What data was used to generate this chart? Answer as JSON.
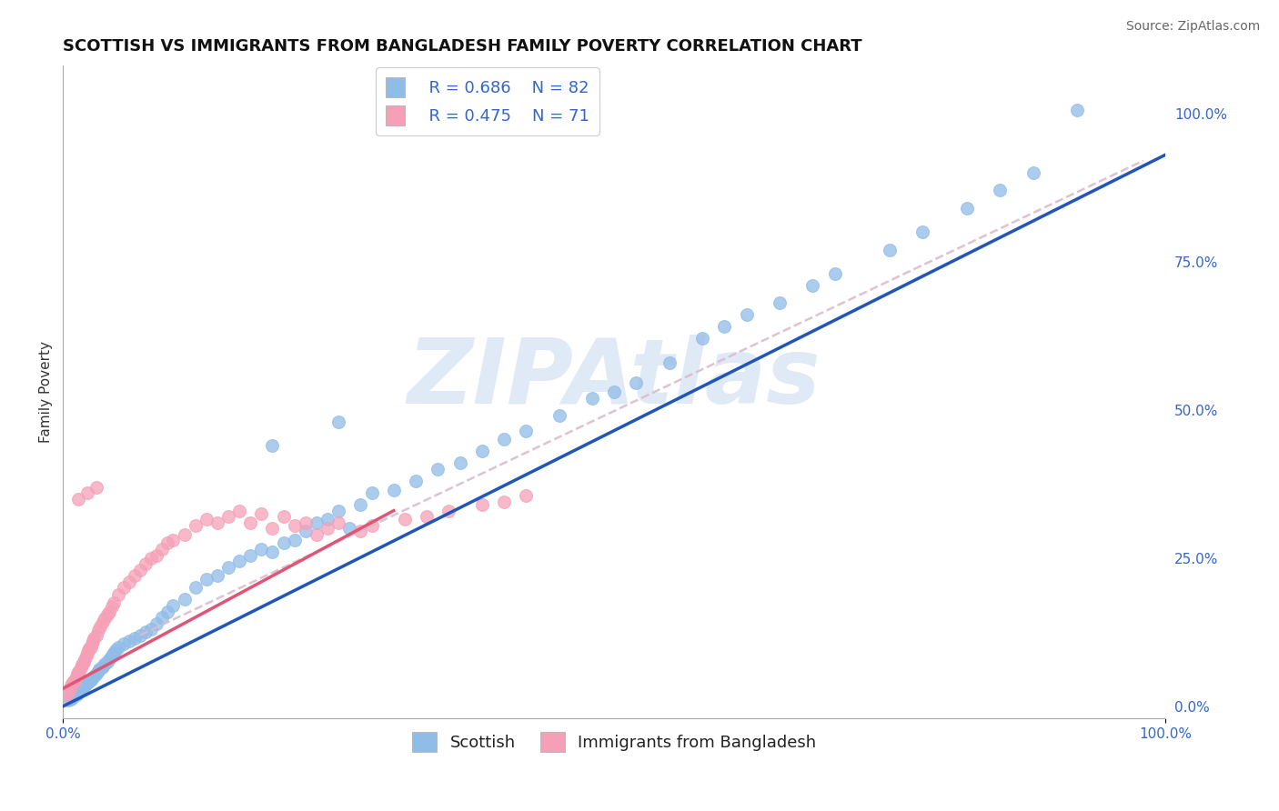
{
  "title": "SCOTTISH VS IMMIGRANTS FROM BANGLADESH FAMILY POVERTY CORRELATION CHART",
  "source": "Source: ZipAtlas.com",
  "ylabel": "Family Poverty",
  "xlim": [
    0,
    1
  ],
  "ylim": [
    -0.02,
    1.08
  ],
  "x_tick_labels": [
    "0.0%",
    "100.0%"
  ],
  "y_tick_labels_right": [
    "0.0%",
    "25.0%",
    "50.0%",
    "75.0%",
    "100.0%"
  ],
  "y_ticks_right": [
    0,
    0.25,
    0.5,
    0.75,
    1.0
  ],
  "scatter_blue_color": "#90bce8",
  "scatter_pink_color": "#f5a0b8",
  "line_blue_color": "#2255bb",
  "line_pink_color": "#e05575",
  "line_ref_color": "#ddbbcc",
  "legend_label_blue": "Scottish",
  "legend_label_pink": "Immigrants from Bangladesh",
  "watermark": "ZIPAtlas",
  "watermark_color": "#c8d8f0",
  "grid_color": "#dddddd",
  "background_color": "#ffffff",
  "title_fontsize": 13,
  "axis_label_fontsize": 11,
  "tick_fontsize": 11,
  "legend_fontsize": 13,
  "blue_line_x0": 0.0,
  "blue_line_y0": 0.0,
  "blue_line_x1": 1.0,
  "blue_line_y1": 0.93,
  "pink_line_x0": 0.0,
  "pink_line_y0": 0.03,
  "pink_line_x1": 0.3,
  "pink_line_y1": 0.33,
  "ref_line_x0": 0.07,
  "ref_line_y0": 0.12,
  "ref_line_x1": 0.98,
  "ref_line_y1": 0.92,
  "blue_scatter_x": [
    0.005,
    0.007,
    0.009,
    0.01,
    0.012,
    0.013,
    0.015,
    0.016,
    0.018,
    0.02,
    0.021,
    0.022,
    0.024,
    0.025,
    0.026,
    0.028,
    0.03,
    0.032,
    0.033,
    0.035,
    0.036,
    0.038,
    0.04,
    0.042,
    0.044,
    0.046,
    0.048,
    0.05,
    0.055,
    0.06,
    0.065,
    0.07,
    0.075,
    0.08,
    0.085,
    0.09,
    0.095,
    0.1,
    0.11,
    0.12,
    0.13,
    0.14,
    0.15,
    0.16,
    0.17,
    0.18,
    0.19,
    0.2,
    0.21,
    0.22,
    0.23,
    0.24,
    0.25,
    0.26,
    0.27,
    0.28,
    0.3,
    0.32,
    0.34,
    0.36,
    0.38,
    0.4,
    0.42,
    0.45,
    0.48,
    0.5,
    0.52,
    0.55,
    0.58,
    0.6,
    0.62,
    0.65,
    0.68,
    0.7,
    0.75,
    0.78,
    0.82,
    0.85,
    0.88,
    0.92,
    0.25,
    0.19
  ],
  "blue_scatter_y": [
    0.01,
    0.012,
    0.015,
    0.018,
    0.02,
    0.022,
    0.025,
    0.028,
    0.03,
    0.035,
    0.038,
    0.04,
    0.042,
    0.045,
    0.048,
    0.05,
    0.055,
    0.06,
    0.062,
    0.065,
    0.068,
    0.072,
    0.075,
    0.08,
    0.085,
    0.09,
    0.095,
    0.1,
    0.105,
    0.11,
    0.115,
    0.12,
    0.125,
    0.13,
    0.14,
    0.15,
    0.16,
    0.17,
    0.18,
    0.2,
    0.215,
    0.22,
    0.235,
    0.245,
    0.255,
    0.265,
    0.26,
    0.275,
    0.28,
    0.295,
    0.31,
    0.315,
    0.33,
    0.3,
    0.34,
    0.36,
    0.365,
    0.38,
    0.4,
    0.41,
    0.43,
    0.45,
    0.465,
    0.49,
    0.52,
    0.53,
    0.545,
    0.58,
    0.62,
    0.64,
    0.66,
    0.68,
    0.71,
    0.73,
    0.77,
    0.8,
    0.84,
    0.87,
    0.9,
    1.005,
    0.48,
    0.44
  ],
  "pink_scatter_x": [
    0.003,
    0.005,
    0.006,
    0.007,
    0.008,
    0.009,
    0.01,
    0.011,
    0.012,
    0.013,
    0.014,
    0.015,
    0.016,
    0.017,
    0.018,
    0.019,
    0.02,
    0.021,
    0.022,
    0.023,
    0.024,
    0.025,
    0.026,
    0.027,
    0.028,
    0.03,
    0.032,
    0.034,
    0.036,
    0.038,
    0.04,
    0.042,
    0.044,
    0.046,
    0.05,
    0.055,
    0.06,
    0.065,
    0.07,
    0.075,
    0.08,
    0.085,
    0.09,
    0.095,
    0.1,
    0.11,
    0.12,
    0.13,
    0.14,
    0.15,
    0.16,
    0.17,
    0.18,
    0.19,
    0.2,
    0.21,
    0.22,
    0.23,
    0.24,
    0.25,
    0.27,
    0.28,
    0.31,
    0.33,
    0.35,
    0.38,
    0.4,
    0.42,
    0.014,
    0.022,
    0.03
  ],
  "pink_scatter_y": [
    0.02,
    0.025,
    0.03,
    0.035,
    0.038,
    0.04,
    0.042,
    0.045,
    0.05,
    0.055,
    0.058,
    0.06,
    0.065,
    0.07,
    0.072,
    0.075,
    0.08,
    0.085,
    0.09,
    0.095,
    0.098,
    0.1,
    0.105,
    0.11,
    0.115,
    0.12,
    0.128,
    0.135,
    0.142,
    0.148,
    0.155,
    0.16,
    0.168,
    0.175,
    0.188,
    0.2,
    0.21,
    0.22,
    0.23,
    0.24,
    0.25,
    0.255,
    0.265,
    0.275,
    0.28,
    0.29,
    0.305,
    0.315,
    0.31,
    0.32,
    0.33,
    0.31,
    0.325,
    0.3,
    0.32,
    0.305,
    0.31,
    0.29,
    0.3,
    0.31,
    0.295,
    0.305,
    0.315,
    0.32,
    0.33,
    0.34,
    0.345,
    0.355,
    0.35,
    0.36,
    0.37
  ]
}
